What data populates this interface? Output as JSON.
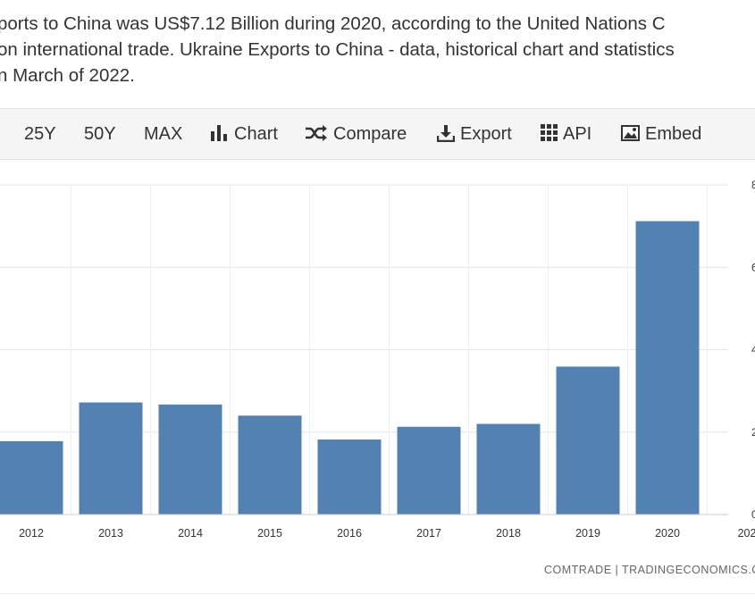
{
  "intro": {
    "line1": "ports to China was US$7.12 Billion during 2020, according to the United Nations C",
    "line2": "on international trade. Ukraine Exports to China - data, historical chart and statistics",
    "line3": "n March of 2022."
  },
  "toolbar": {
    "range_25y": "25Y",
    "range_50y": "50Y",
    "range_max": "MAX",
    "chart_label": "Chart",
    "compare_label": "Compare",
    "export_label": "Export",
    "api_label": "API",
    "embed_label": "Embed"
  },
  "source_text": "COMTRADE | TRADINGECONOMICS.C",
  "colors": {
    "bar": "#5381b1",
    "grid": "#e6e6e6",
    "toolbar_bg": "#f5f5f5"
  },
  "chart_data": {
    "type": "bar",
    "categories": [
      "2012",
      "2013",
      "2014",
      "2015",
      "2016",
      "2017",
      "2018",
      "2019",
      "2020"
    ],
    "values": [
      1.78,
      2.72,
      2.67,
      2.4,
      1.82,
      2.13,
      2.2,
      3.59,
      7.12
    ],
    "x_tick_labels": [
      "2012",
      "2013",
      "2014",
      "2015",
      "2016",
      "2017",
      "2018",
      "2019",
      "2020",
      "202"
    ],
    "y_tick_labels": [
      "0",
      "2",
      "4",
      "6",
      "8"
    ],
    "ylim": [
      0,
      8
    ],
    "grid": true,
    "y_axis_position": "right"
  }
}
